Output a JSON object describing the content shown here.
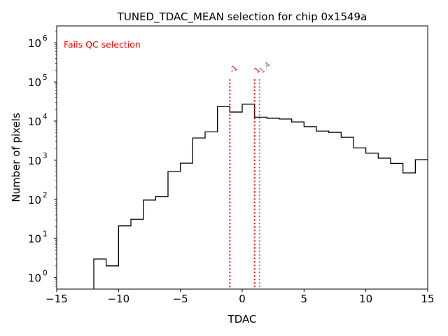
{
  "chart_data": {
    "type": "histogram",
    "title": "TUNED_TDAC_MEAN selection for chip 0x1549a",
    "xlabel": "TDAC",
    "ylabel": "Number of pixels",
    "xlim": [
      -15,
      15
    ],
    "ylim": [
      0.51,
      2700000
    ],
    "yscale": "log",
    "xticks": [
      -15,
      -10,
      -5,
      0,
      5,
      10,
      15
    ],
    "xtick_labels": [
      "−15",
      "−10",
      "−5",
      "0",
      "5",
      "10",
      "15"
    ],
    "yticks_exp": [
      0,
      1,
      2,
      3,
      4,
      5,
      6
    ],
    "bin_edges": [
      -12,
      -11,
      -10,
      -9,
      -8,
      -7,
      -6,
      -5,
      -4,
      -3,
      -2,
      -1,
      0,
      1,
      2,
      3,
      4,
      5,
      6,
      7,
      8,
      9,
      10,
      11,
      12,
      13,
      14,
      15
    ],
    "counts": [
      3,
      2,
      21,
      31,
      96,
      118,
      515,
      840,
      3700,
      5300,
      23500,
      17000,
      27000,
      12600,
      11800,
      11300,
      9500,
      7200,
      5550,
      5150,
      3850,
      2070,
      1510,
      1130,
      830,
      475,
      1030
    ],
    "histogram_color": "#000000",
    "annotation": {
      "text": "Fails QC selection",
      "color": "#ff0000",
      "placement": "top-left"
    },
    "vlines": [
      {
        "x": -1,
        "label": "-1",
        "color": "#ff0000"
      },
      {
        "x": 1,
        "label": "1",
        "color": "#ff0000"
      },
      {
        "x": 1.4,
        "label": "1.4",
        "color": "#808080"
      }
    ],
    "vline_top": 117000
  }
}
